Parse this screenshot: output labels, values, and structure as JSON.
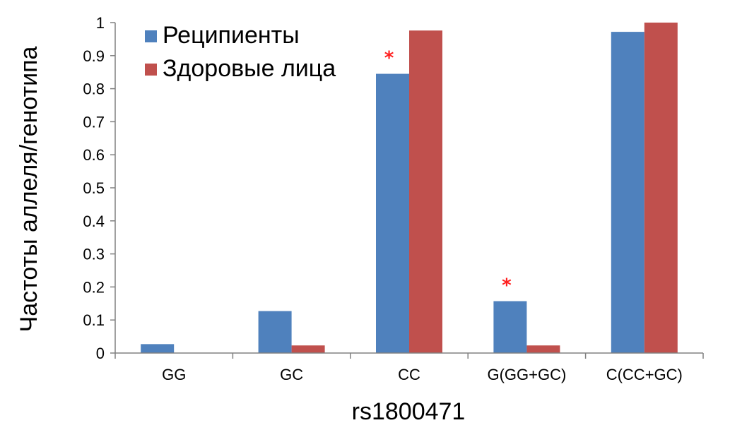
{
  "chart_data": {
    "type": "bar",
    "categories": [
      "GG",
      "GC",
      "CC",
      "G(GG+GC)",
      "C(CC+GC)"
    ],
    "series": [
      {
        "name": "Реципиенты",
        "color": "#4f81bd",
        "values": [
          0.027,
          0.127,
          0.845,
          0.157,
          0.972
        ]
      },
      {
        "name": "Здоровые лица",
        "color": "#c0504d",
        "values": [
          0.0,
          0.023,
          0.976,
          0.023,
          1.0
        ]
      }
    ],
    "ylim": [
      0,
      1
    ],
    "yticks": [
      "0",
      "0.1",
      "0.2",
      "0.3",
      "0.4",
      "0.5",
      "0.6",
      "0.7",
      "0.8",
      "0.9",
      "1"
    ],
    "ylabel": "Частоты аллеля/генотипа",
    "xlabel": "rs1800471",
    "annotations": [
      {
        "text": "*",
        "category_index": 2,
        "series_index": 0
      },
      {
        "text": "*",
        "category_index": 3,
        "series_index": 0
      }
    ],
    "legend_position": "top-left",
    "grid": false
  }
}
